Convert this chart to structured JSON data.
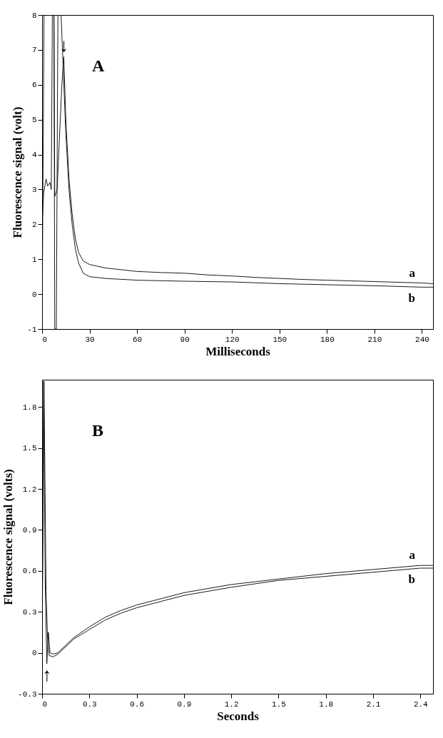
{
  "chart_data": [
    {
      "type": "line",
      "xlabel": "Milliseconds",
      "ylabel": "Fluorescence signal (volt)",
      "xlim": [
        0,
        247
      ],
      "ylim": [
        -1,
        8
      ],
      "xticks": [
        0,
        30,
        60,
        90,
        120,
        150,
        180,
        210,
        240
      ],
      "yticks": [
        -1,
        0,
        1,
        2,
        3,
        4,
        5,
        6,
        7,
        8
      ],
      "grid": false,
      "annotations": [
        "A",
        {
          "text": "↓",
          "x": 13.7,
          "y": 6.8
        }
      ],
      "series": [
        {
          "name": "a",
          "color": "#000000",
          "x": [
            0,
            1,
            2.5,
            3.5,
            5,
            5.8,
            6.5,
            7.5,
            8,
            9.5,
            11,
            12.5,
            13.7,
            15,
            17,
            19,
            21,
            23,
            26,
            30,
            40,
            50,
            60,
            75,
            90,
            105,
            120,
            135,
            150,
            165,
            180,
            195,
            210,
            225,
            240,
            247
          ],
          "values": [
            2,
            2.9,
            3.3,
            3.1,
            3.2,
            3,
            8,
            8,
            2.8,
            3,
            4.5,
            6,
            6.8,
            5,
            3.3,
            2.3,
            1.6,
            1.2,
            0.95,
            0.85,
            0.75,
            0.7,
            0.65,
            0.62,
            0.6,
            0.55,
            0.52,
            0.48,
            0.45,
            0.42,
            0.4,
            0.38,
            0.36,
            0.34,
            0.32,
            0.3
          ]
        },
        {
          "name": "b",
          "color": "#000000",
          "x": [
            0,
            1.2,
            7.5,
            8,
            9,
            10,
            12,
            13.5,
            15,
            17,
            19,
            21,
            23,
            26,
            30,
            40,
            60,
            90,
            120,
            150,
            180,
            210,
            240,
            247
          ],
          "values": [
            -1,
            8,
            8,
            -1,
            -1,
            8,
            8,
            6.3,
            4.6,
            3,
            2,
            1.3,
            0.9,
            0.6,
            0.5,
            0.45,
            0.4,
            0.37,
            0.35,
            0.3,
            0.27,
            0.24,
            0.2,
            0.2
          ]
        }
      ]
    },
    {
      "type": "line",
      "xlabel": "Seconds",
      "ylabel": "Fluorescence signal (volts)",
      "xlim": [
        0,
        2.48
      ],
      "ylim": [
        -0.3,
        2.0
      ],
      "xticks": [
        0,
        0.3,
        0.6,
        0.9,
        1.2,
        1.5,
        1.8,
        2.1,
        2.4
      ],
      "yticks": [
        -0.3,
        0,
        0.3,
        0.6,
        0.9,
        1.2,
        1.5,
        1.8
      ],
      "grid": false,
      "annotations": [
        "B",
        {
          "text": "↑",
          "x": 0.03,
          "y": -0.08
        }
      ],
      "series": [
        {
          "name": "a",
          "color": "#000000",
          "x": [
            0,
            0.01,
            0.02,
            0.03,
            0.04,
            0.05,
            0.07,
            0.1,
            0.2,
            0.3,
            0.4,
            0.5,
            0.6,
            0.7,
            0.9,
            1.0,
            1.2,
            1.5,
            1.8,
            2.1,
            2.4,
            2.48
          ],
          "values": [
            0,
            1.99,
            0.5,
            -0.08,
            0.15,
            0,
            -0.01,
            0,
            0.11,
            0.19,
            0.26,
            0.31,
            0.35,
            0.38,
            0.44,
            0.46,
            0.5,
            0.54,
            0.58,
            0.61,
            0.64,
            0.64
          ]
        },
        {
          "name": "b",
          "color": "#000000",
          "x": [
            0,
            0.012,
            0.025,
            0.035,
            0.045,
            0.07,
            0.1,
            0.2,
            0.3,
            0.4,
            0.5,
            0.6,
            0.7,
            0.9,
            1.0,
            1.2,
            1.5,
            1.8,
            2.1,
            2.4,
            2.48
          ],
          "values": [
            0,
            1.99,
            0.45,
            0.1,
            -0.02,
            -0.03,
            -0.01,
            0.1,
            0.17,
            0.24,
            0.29,
            0.33,
            0.36,
            0.42,
            0.44,
            0.48,
            0.53,
            0.56,
            0.59,
            0.62,
            0.62
          ]
        }
      ]
    }
  ]
}
